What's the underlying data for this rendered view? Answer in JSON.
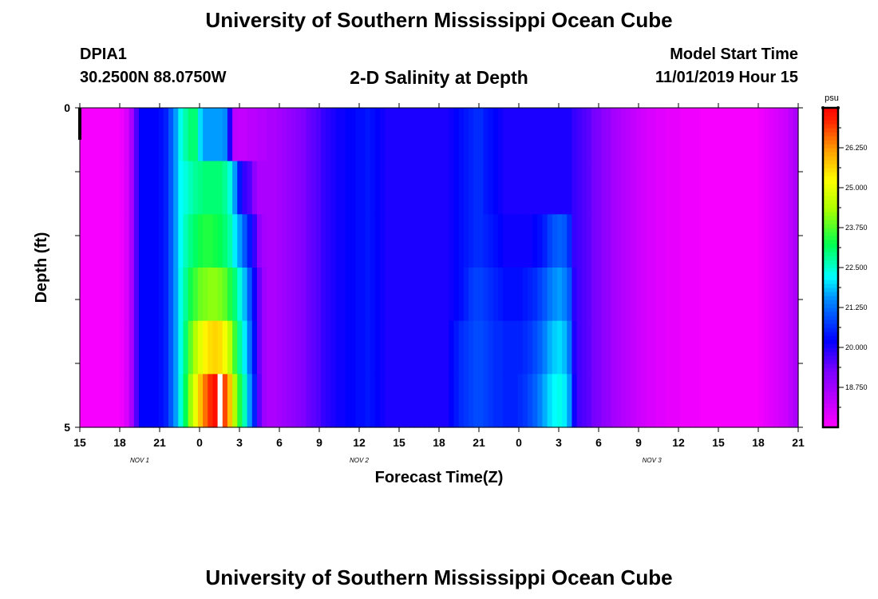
{
  "page": {
    "title": "University of Southern Mississippi Ocean Cube",
    "station_id": "DPIA1",
    "station_coords": "30.2500N 88.0750W",
    "plot_title": "2-D Salinity at Depth",
    "model_start_label": "Model Start Time",
    "model_start_value": "11/01/2019 Hour 15",
    "footer_title": "University of Southern Mississippi Ocean Cube"
  },
  "chart_data": {
    "type": "heatmap",
    "title": "2-D Salinity at Depth",
    "xlabel": "Forecast Time(Z)",
    "ylabel": "Depth (ft)",
    "x_tick_labels": [
      "15",
      "18",
      "21",
      "0",
      "3",
      "6",
      "9",
      "12",
      "15",
      "18",
      "21",
      "0",
      "3",
      "6",
      "9",
      "12",
      "15",
      "18",
      "21"
    ],
    "date_labels": [
      {
        "label": "NOV 1",
        "hour_offset": 4.5
      },
      {
        "label": "NOV 2",
        "hour_offset": 21
      },
      {
        "label": "NOV 3",
        "hour_offset": 43
      }
    ],
    "x_range_hours": [
      0,
      54
    ],
    "y_tick_labels": [
      "0",
      "5"
    ],
    "y_range": [
      0,
      5
    ],
    "depth_levels": 5,
    "colorbar": {
      "unit": "psu",
      "range": [
        17.5,
        27.5
      ],
      "tick_values": [
        18.75,
        20.0,
        21.25,
        22.5,
        23.75,
        25.0,
        26.25
      ],
      "tick_labels": [
        "18.750",
        "20.000",
        "21.250",
        "22.500",
        "23.750",
        "25.000",
        "26.250"
      ]
    },
    "salinity_by_depth": [
      [
        17.6,
        17.6,
        17.6,
        17.6,
        17.6,
        17.6,
        17.6,
        17.6,
        17.7,
        18.0,
        18.6,
        19.6,
        20.2,
        20.2,
        20.2,
        20.2,
        20.3,
        20.5,
        21.0,
        21.6,
        22.3,
        22.7,
        23.0,
        23.0,
        22.0,
        21.6,
        21.6,
        21.6,
        21.6,
        21.5,
        20.0,
        18.4,
        18.3,
        18.3,
        18.4,
        18.4,
        18.5,
        18.5,
        18.6,
        18.6,
        18.7,
        18.8,
        18.9,
        19.0,
        19.1,
        19.2,
        19.4,
        19.5,
        19.6,
        19.8,
        19.9,
        20.0,
        20.1,
        20.1,
        20.2,
        20.2,
        20.3,
        20.3,
        20.4,
        20.3,
        20.2,
        20.1,
        20.0,
        20.0,
        20.0,
        20.0,
        20.0,
        20.0,
        20.0,
        20.0,
        20.0,
        20.0,
        20.0,
        20.0,
        20.0,
        20.1,
        20.2,
        20.3,
        20.4,
        20.5,
        20.6,
        20.6,
        20.4,
        20.3,
        20.2,
        20.1,
        20.0,
        20.0,
        20.0,
        20.0,
        20.0,
        20.0,
        20.0,
        20.0,
        20.0,
        20.0,
        20.0,
        20.0,
        20.0,
        20.0,
        19.8,
        19.7,
        19.6,
        19.5,
        19.3,
        19.2,
        19.0,
        18.9,
        18.7,
        18.6,
        18.5,
        18.4,
        18.3,
        18.2,
        18.1,
        18.0,
        18.0,
        17.9,
        17.9,
        17.8,
        17.8,
        17.8,
        17.7,
        17.7,
        17.7,
        17.7,
        17.6,
        17.6,
        17.6,
        17.6,
        17.6,
        17.6,
        17.6,
        17.6,
        17.6,
        17.6,
        17.6,
        17.6,
        17.7,
        17.8,
        17.9,
        18.0,
        18.1,
        18.2,
        18.4,
        18.6
      ],
      [
        17.6,
        17.6,
        17.6,
        17.6,
        17.6,
        17.6,
        17.6,
        17.6,
        17.7,
        18.0,
        18.6,
        19.6,
        20.2,
        20.2,
        20.2,
        20.2,
        20.3,
        20.5,
        21.0,
        21.6,
        22.2,
        22.4,
        22.6,
        22.8,
        22.9,
        23.0,
        23.0,
        23.0,
        23.0,
        22.8,
        22.4,
        21.6,
        20.4,
        19.8,
        19.6,
        19.0,
        18.6,
        18.6,
        18.6,
        18.6,
        18.7,
        18.8,
        18.9,
        19.0,
        19.1,
        19.2,
        19.4,
        19.5,
        19.6,
        19.8,
        19.9,
        20.0,
        20.1,
        20.1,
        20.2,
        20.2,
        20.3,
        20.3,
        20.4,
        20.3,
        20.2,
        20.1,
        20.0,
        20.0,
        20.0,
        20.0,
        20.0,
        20.0,
        20.0,
        20.0,
        20.0,
        20.0,
        20.0,
        20.0,
        20.0,
        20.1,
        20.2,
        20.3,
        20.4,
        20.5,
        20.6,
        20.6,
        20.4,
        20.3,
        20.2,
        20.1,
        20.0,
        20.0,
        20.0,
        20.0,
        20.0,
        20.0,
        20.0,
        20.0,
        20.0,
        20.0,
        20.0,
        20.0,
        20.0,
        20.0,
        19.8,
        19.7,
        19.6,
        19.5,
        19.3,
        19.2,
        19.0,
        18.9,
        18.7,
        18.6,
        18.5,
        18.4,
        18.3,
        18.2,
        18.1,
        18.0,
        18.0,
        17.9,
        17.9,
        17.8,
        17.8,
        17.8,
        17.7,
        17.7,
        17.7,
        17.7,
        17.6,
        17.6,
        17.6,
        17.6,
        17.6,
        17.6,
        17.6,
        17.6,
        17.6,
        17.6,
        17.6,
        17.6,
        17.7,
        17.8,
        17.9,
        18.0,
        18.1,
        18.2,
        18.4,
        18.6
      ],
      [
        17.6,
        17.6,
        17.6,
        17.6,
        17.6,
        17.6,
        17.6,
        17.6,
        17.7,
        18.0,
        18.6,
        19.6,
        20.2,
        20.2,
        20.2,
        20.2,
        20.3,
        20.5,
        21.0,
        21.6,
        22.2,
        22.6,
        22.9,
        23.1,
        23.3,
        23.4,
        23.4,
        23.3,
        23.2,
        23.0,
        22.7,
        22.1,
        21.6,
        21.0,
        20.4,
        19.8,
        19.0,
        18.7,
        18.6,
        18.6,
        18.7,
        18.8,
        18.9,
        19.0,
        19.1,
        19.2,
        19.4,
        19.5,
        19.6,
        19.8,
        19.9,
        20.0,
        20.1,
        20.1,
        20.2,
        20.2,
        20.3,
        20.3,
        20.4,
        20.3,
        20.2,
        20.1,
        20.0,
        20.0,
        20.0,
        20.0,
        20.0,
        20.0,
        20.0,
        20.0,
        20.0,
        20.0,
        20.0,
        20.0,
        20.0,
        20.1,
        20.2,
        20.3,
        20.4,
        20.5,
        20.6,
        20.6,
        20.5,
        20.4,
        20.3,
        20.2,
        20.1,
        20.1,
        20.1,
        20.1,
        20.1,
        20.1,
        20.2,
        20.3,
        20.5,
        20.8,
        21.0,
        21.1,
        21.0,
        20.6,
        19.8,
        19.7,
        19.6,
        19.5,
        19.3,
        19.2,
        19.0,
        18.9,
        18.7,
        18.6,
        18.5,
        18.4,
        18.3,
        18.2,
        18.1,
        18.0,
        18.0,
        17.9,
        17.9,
        17.8,
        17.8,
        17.8,
        17.7,
        17.7,
        17.7,
        17.7,
        17.6,
        17.6,
        17.6,
        17.6,
        17.6,
        17.6,
        17.6,
        17.6,
        17.6,
        17.6,
        17.6,
        17.6,
        17.7,
        17.8,
        17.9,
        18.0,
        18.1,
        18.2,
        18.4,
        18.6
      ],
      [
        17.6,
        17.6,
        17.6,
        17.6,
        17.6,
        17.6,
        17.6,
        17.6,
        17.7,
        18.0,
        18.6,
        19.6,
        20.2,
        20.2,
        20.2,
        20.2,
        20.3,
        20.5,
        21.0,
        21.6,
        22.3,
        22.8,
        23.3,
        23.6,
        23.9,
        24.0,
        24.1,
        24.1,
        24.0,
        23.8,
        23.4,
        23.0,
        22.4,
        21.8,
        21.0,
        20.1,
        19.4,
        18.8,
        18.6,
        18.6,
        18.7,
        18.8,
        18.9,
        19.0,
        19.1,
        19.2,
        19.4,
        19.5,
        19.6,
        19.8,
        19.9,
        20.0,
        20.1,
        20.1,
        20.2,
        20.2,
        20.3,
        20.3,
        20.4,
        20.3,
        20.2,
        20.1,
        20.0,
        20.0,
        20.0,
        20.0,
        20.0,
        20.0,
        20.0,
        20.0,
        20.0,
        20.0,
        20.0,
        20.0,
        20.0,
        20.1,
        20.2,
        20.3,
        20.5,
        20.7,
        20.8,
        20.8,
        20.7,
        20.6,
        20.5,
        20.4,
        20.3,
        20.3,
        20.3,
        20.3,
        20.4,
        20.5,
        20.6,
        20.8,
        21.0,
        21.3,
        21.5,
        21.6,
        21.4,
        21.0,
        19.9,
        19.7,
        19.6,
        19.5,
        19.3,
        19.2,
        19.0,
        18.9,
        18.7,
        18.6,
        18.5,
        18.4,
        18.3,
        18.2,
        18.1,
        18.0,
        18.0,
        17.9,
        17.9,
        17.8,
        17.8,
        17.8,
        17.7,
        17.7,
        17.7,
        17.7,
        17.6,
        17.6,
        17.6,
        17.6,
        17.6,
        17.6,
        17.6,
        17.6,
        17.6,
        17.6,
        17.6,
        17.6,
        17.7,
        17.8,
        17.9,
        18.0,
        18.1,
        18.2,
        18.4,
        18.6
      ],
      [
        17.6,
        17.6,
        17.6,
        17.6,
        17.6,
        17.6,
        17.6,
        17.6,
        17.7,
        18.0,
        18.6,
        19.6,
        20.2,
        20.2,
        20.2,
        20.2,
        20.3,
        20.5,
        21.0,
        21.6,
        22.3,
        23.0,
        23.8,
        24.4,
        24.9,
        25.3,
        25.5,
        25.6,
        25.5,
        25.1,
        24.5,
        23.6,
        22.8,
        22.1,
        21.3,
        20.3,
        19.4,
        18.8,
        18.6,
        18.6,
        18.7,
        18.8,
        18.9,
        19.0,
        19.1,
        19.2,
        19.4,
        19.5,
        19.6,
        19.8,
        19.9,
        20.0,
        20.1,
        20.1,
        20.2,
        20.2,
        20.3,
        20.3,
        20.4,
        20.3,
        20.2,
        20.1,
        20.0,
        20.0,
        20.0,
        20.0,
        20.0,
        20.0,
        20.0,
        20.0,
        20.0,
        20.0,
        20.0,
        20.0,
        20.0,
        20.2,
        20.4,
        20.6,
        20.7,
        20.8,
        20.9,
        20.9,
        20.8,
        20.7,
        20.6,
        20.6,
        20.5,
        20.5,
        20.5,
        20.5,
        20.6,
        20.7,
        20.9,
        21.1,
        21.4,
        21.7,
        21.9,
        22.0,
        21.8,
        21.3,
        20.0,
        19.7,
        19.6,
        19.5,
        19.3,
        19.2,
        19.0,
        18.9,
        18.7,
        18.6,
        18.5,
        18.4,
        18.3,
        18.2,
        18.1,
        18.0,
        18.0,
        17.9,
        17.9,
        17.8,
        17.8,
        17.8,
        17.7,
        17.7,
        17.7,
        17.7,
        17.6,
        17.6,
        17.6,
        17.6,
        17.6,
        17.6,
        17.6,
        17.6,
        17.6,
        17.6,
        17.6,
        17.6,
        17.7,
        17.8,
        17.9,
        18.0,
        18.1,
        18.2,
        18.4,
        18.6
      ],
      [
        17.6,
        17.6,
        17.6,
        17.6,
        17.6,
        17.6,
        17.6,
        17.6,
        17.7,
        18.0,
        18.6,
        19.6,
        20.2,
        20.2,
        20.2,
        20.2,
        20.3,
        20.5,
        21.0,
        21.6,
        22.4,
        23.2,
        24.2,
        25.0,
        25.8,
        26.5,
        27.0,
        27.3,
        27.5,
        26.8,
        25.8,
        24.4,
        23.4,
        22.6,
        21.6,
        20.5,
        19.5,
        18.8,
        18.6,
        18.6,
        18.7,
        18.8,
        18.9,
        19.0,
        19.1,
        19.2,
        19.4,
        19.5,
        19.6,
        19.8,
        19.9,
        20.0,
        20.1,
        20.1,
        20.2,
        20.2,
        20.3,
        20.3,
        20.4,
        20.3,
        20.2,
        20.1,
        20.0,
        20.0,
        20.0,
        20.0,
        20.0,
        20.0,
        20.0,
        20.0,
        20.0,
        20.0,
        20.0,
        20.0,
        20.0,
        20.2,
        20.4,
        20.6,
        20.7,
        20.8,
        20.9,
        20.9,
        20.8,
        20.7,
        20.6,
        20.6,
        20.5,
        20.5,
        20.5,
        20.6,
        20.7,
        20.9,
        21.1,
        21.4,
        21.7,
        22.0,
        22.2,
        22.3,
        22.1,
        21.6,
        20.1,
        19.7,
        19.6,
        19.5,
        19.3,
        19.2,
        19.0,
        18.9,
        18.7,
        18.6,
        18.5,
        18.4,
        18.3,
        18.2,
        18.1,
        18.0,
        18.0,
        17.9,
        17.9,
        17.8,
        17.8,
        17.8,
        17.7,
        17.7,
        17.7,
        17.7,
        17.6,
        17.6,
        17.6,
        17.6,
        17.6,
        17.6,
        17.6,
        17.6,
        17.6,
        17.6,
        17.6,
        17.6,
        17.7,
        17.8,
        17.9,
        18.0,
        18.1,
        18.2,
        18.4,
        18.6
      ]
    ]
  }
}
